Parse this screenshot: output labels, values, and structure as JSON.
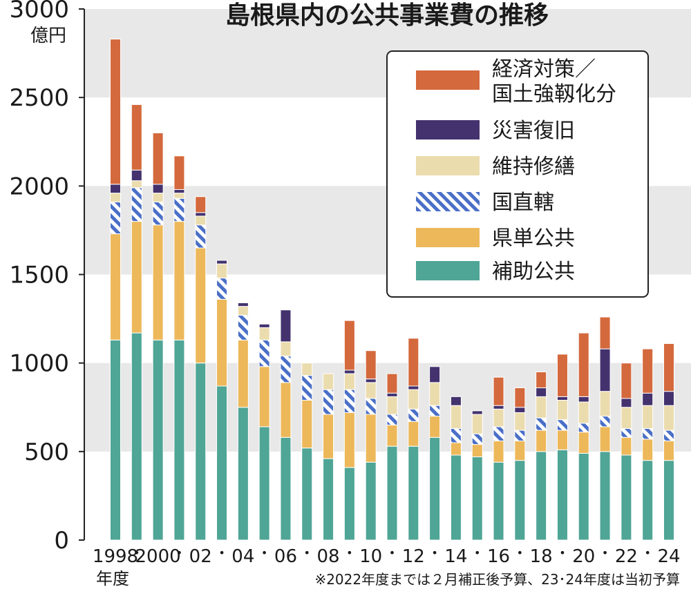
{
  "chart_data": {
    "type": "bar",
    "stacked": true,
    "title": "島根県内の公共事業費の推移",
    "ylabel": "億円",
    "xlabel": "年度",
    "ylim": [
      0,
      3000
    ],
    "yticks": [
      "0",
      "500",
      "1000",
      "1500",
      "2000",
      "2500",
      "3000"
    ],
    "grid": "alternating horizontal bands",
    "legend_position": "top-right",
    "footnote": "※2022年度までは２月補正後予算、23･24年度は当初予算",
    "categories": [
      "1998",
      "1999",
      "2000",
      "2001",
      "2002",
      "2003",
      "2004",
      "2005",
      "2006",
      "2007",
      "2008",
      "2009",
      "2010",
      "2011",
      "2012",
      "2013",
      "2014",
      "2015",
      "2016",
      "2017",
      "2018",
      "2019",
      "2020",
      "2021",
      "2022",
      "2023",
      "2024"
    ],
    "x_tick_labels": [
      "1998",
      "•",
      "2000",
      "•",
      "02",
      "•",
      "04",
      "•",
      "06",
      "•",
      "08",
      "•",
      "10",
      "•",
      "12",
      "•",
      "14",
      "•",
      "16",
      "•",
      "18",
      "•",
      "20",
      "•",
      "22",
      "•",
      "24"
    ],
    "series": [
      {
        "name": "補助公共",
        "color": "#4fa596",
        "pattern": "solid",
        "values": [
          1130,
          1170,
          1130,
          1130,
          1000,
          870,
          750,
          640,
          580,
          520,
          460,
          410,
          440,
          530,
          530,
          580,
          480,
          470,
          440,
          450,
          500,
          510,
          490,
          500,
          480,
          450,
          450
        ]
      },
      {
        "name": "県単公共",
        "color": "#edb85a",
        "pattern": "solid",
        "values": [
          600,
          630,
          650,
          670,
          650,
          490,
          380,
          340,
          310,
          270,
          250,
          310,
          270,
          120,
          140,
          120,
          70,
          70,
          120,
          110,
          120,
          110,
          120,
          140,
          100,
          120,
          110
        ]
      },
      {
        "name": "国直轄",
        "color": "#4a6fc7",
        "pattern": "hatch",
        "values": [
          180,
          190,
          130,
          130,
          130,
          120,
          140,
          150,
          150,
          140,
          140,
          130,
          90,
          60,
          70,
          60,
          80,
          60,
          80,
          60,
          70,
          60,
          50,
          60,
          50,
          60,
          60
        ]
      },
      {
        "name": "維持修繕",
        "color": "#ebdcae",
        "pattern": "solid",
        "values": [
          50,
          40,
          50,
          30,
          50,
          80,
          50,
          70,
          80,
          70,
          90,
          90,
          90,
          100,
          110,
          130,
          130,
          110,
          100,
          100,
          120,
          110,
          120,
          140,
          120,
          130,
          140
        ]
      },
      {
        "name": "災害復旧",
        "color": "#43326e",
        "pattern": "solid",
        "values": [
          50,
          60,
          50,
          20,
          20,
          20,
          20,
          20,
          180,
          0,
          0,
          20,
          20,
          20,
          20,
          90,
          50,
          20,
          20,
          30,
          50,
          20,
          30,
          240,
          50,
          70,
          80
        ]
      },
      {
        "name": "経済対策／国土強靱化分",
        "color": "#d4693d",
        "pattern": "solid",
        "values": [
          820,
          370,
          290,
          190,
          90,
          0,
          0,
          0,
          0,
          0,
          0,
          280,
          160,
          110,
          270,
          0,
          0,
          0,
          160,
          110,
          90,
          240,
          360,
          180,
          200,
          250,
          270
        ]
      }
    ]
  }
}
